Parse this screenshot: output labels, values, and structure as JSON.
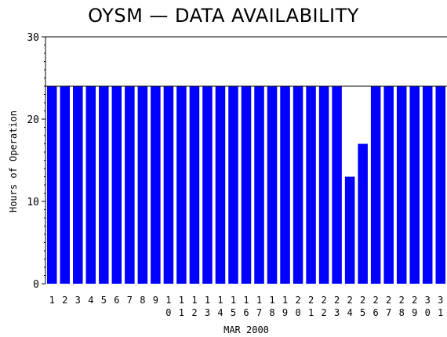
{
  "chart_data": {
    "type": "bar",
    "title": "OYSM — DATA AVAILABILITY",
    "xlabel": "MAR 2000",
    "ylabel": "Hours of Operation",
    "ylim": [
      0,
      30
    ],
    "yticks": [
      0,
      10,
      20,
      30
    ],
    "reference_line": 24,
    "bar_color": "#0000ff",
    "grid": false,
    "categories": [
      "1",
      "2",
      "3",
      "4",
      "5",
      "6",
      "7",
      "8",
      "9",
      "10",
      "11",
      "12",
      "13",
      "14",
      "15",
      "16",
      "17",
      "18",
      "19",
      "20",
      "21",
      "22",
      "23",
      "24",
      "25",
      "26",
      "27",
      "28",
      "29",
      "30",
      "31"
    ],
    "values": [
      24,
      24,
      24,
      24,
      24,
      24,
      24,
      24,
      24,
      24,
      24,
      24,
      24,
      24,
      24,
      24,
      24,
      24,
      24,
      24,
      24,
      24,
      24,
      13,
      17,
      24,
      24,
      24,
      24,
      24,
      24
    ]
  }
}
